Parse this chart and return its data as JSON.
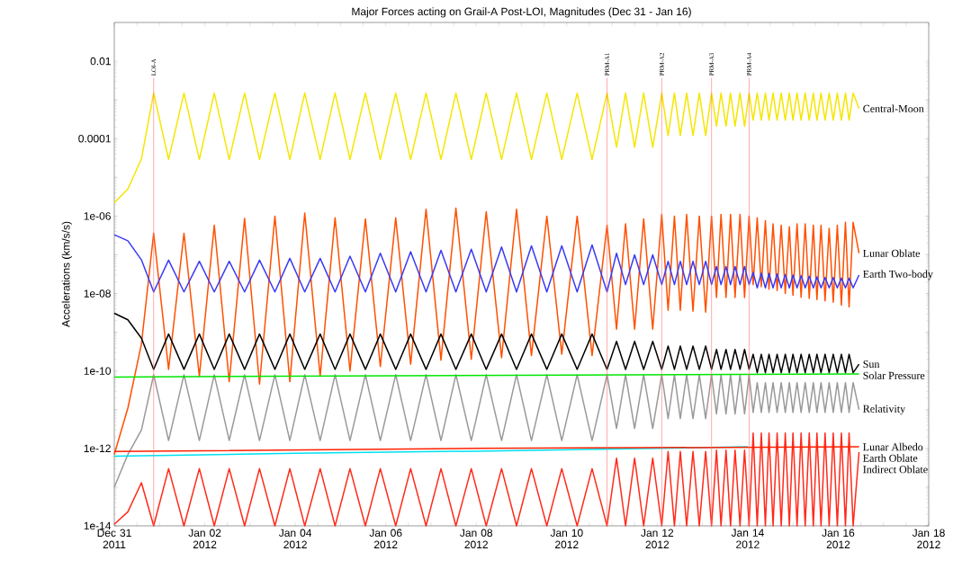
{
  "chart_data": {
    "type": "line",
    "title": "Major Forces acting on Grail-A Post-LOI, Magnitudes (Dec 31 - Jan 16)",
    "ylabel": "Accelerations (km/s/s)",
    "log": "y",
    "xlim": [
      "2011-12-31",
      "2012-01-18"
    ],
    "ylim": [
      1e-14,
      0.1
    ],
    "xticks": [
      {
        "value": "2011-12-31",
        "label": "Dec 31 2011"
      },
      {
        "value": "2011-12-31T12:00",
        "label": null
      },
      {
        "value": "2012-01-01",
        "label": null
      },
      {
        "value": "2012-01-01T12:00",
        "label": null
      },
      {
        "value": "2012-01-02",
        "label": "Jan 02 2012"
      },
      {
        "value": "2012-01-02T12:00",
        "label": null
      },
      {
        "value": "2012-01-03",
        "label": null
      },
      {
        "value": "2012-01-03T12:00",
        "label": null
      },
      {
        "value": "2012-01-04",
        "label": "Jan 04 2012"
      },
      {
        "value": "2012-01-04T12:00",
        "label": null
      },
      {
        "value": "2012-01-05",
        "label": null
      },
      {
        "value": "2012-01-05T12:00",
        "label": null
      },
      {
        "value": "2012-01-06",
        "label": "Jan 06 2012"
      },
      {
        "value": "2012-01-06T12:00",
        "label": null
      },
      {
        "value": "2012-01-07",
        "label": null
      },
      {
        "value": "2012-01-07T12:00",
        "label": null
      },
      {
        "value": "2012-01-08",
        "label": "Jan 08 2012"
      },
      {
        "value": "2012-01-08T12:00",
        "label": null
      },
      {
        "value": "2012-01-09",
        "label": null
      },
      {
        "value": "2012-01-09T12:00",
        "label": null
      },
      {
        "value": "2012-01-10",
        "label": "Jan 10 2012"
      },
      {
        "value": "2012-01-10T12:00",
        "label": null
      },
      {
        "value": "2012-01-11",
        "label": null
      },
      {
        "value": "2012-01-11T12:00",
        "label": null
      },
      {
        "value": "2012-01-12",
        "label": "Jan 12 2012"
      },
      {
        "value": "2012-01-12T12:00",
        "label": null
      },
      {
        "value": "2012-01-13",
        "label": null
      },
      {
        "value": "2012-01-13T12:00",
        "label": null
      },
      {
        "value": "2012-01-14",
        "label": "Jan 14 2012"
      },
      {
        "value": "2012-01-14T12:00",
        "label": null
      },
      {
        "value": "2012-01-15",
        "label": null
      },
      {
        "value": "2012-01-15T12:00",
        "label": null
      },
      {
        "value": "2012-01-16",
        "label": "Jan 16 2012"
      },
      {
        "value": "2012-01-16T12:00",
        "label": null
      },
      {
        "value": "2012-01-17",
        "label": null
      },
      {
        "value": "2012-01-17T12:00",
        "label": null
      },
      {
        "value": "2012-01-18",
        "label": "Jan 18 2012"
      }
    ],
    "yticks": [
      {
        "value": 1e-14,
        "label": "1e-14"
      },
      {
        "value": 1e-13,
        "label": null
      },
      {
        "value": 1e-12,
        "label": "1e-12"
      },
      {
        "value": 1e-11,
        "label": null
      },
      {
        "value": 1e-10,
        "label": "1e-10"
      },
      {
        "value": 1e-09,
        "label": null
      },
      {
        "value": 1e-08,
        "label": "1e-08"
      },
      {
        "value": 1e-07,
        "label": null
      },
      {
        "value": 1e-06,
        "label": "1e-06"
      },
      {
        "value": 1e-05,
        "label": null
      },
      {
        "value": 0.0001,
        "label": "0.0001"
      },
      {
        "value": 0.001,
        "label": null
      },
      {
        "value": 0.01,
        "label": "0.01"
      }
    ],
    "x": [
      "2011-12-31T00:00",
      "2011-12-31T07:12",
      "2011-12-31T14:24",
      "2011-12-31T20:53",
      "2012-01-01T04:48",
      "2012-01-01T12:58",
      "2012-01-01T21:07",
      "2012-01-02T05:02",
      "2012-01-02T12:58",
      "2012-01-02T21:07",
      "2012-01-03T05:02",
      "2012-01-03T13:12",
      "2012-01-03T21:07",
      "2012-01-04T05:02",
      "2012-01-04T13:12",
      "2012-01-04T21:07",
      "2012-01-05T05:02",
      "2012-01-05T13:12",
      "2012-01-05T21:07",
      "2012-01-06T05:17",
      "2012-01-06T13:12",
      "2012-01-06T21:22",
      "2012-01-07T05:17",
      "2012-01-07T13:12",
      "2012-01-07T21:22",
      "2012-01-08T05:17",
      "2012-01-08T13:26",
      "2012-01-08T21:22",
      "2012-01-09T05:17",
      "2012-01-09T13:26",
      "2012-01-09T21:22",
      "2012-01-10T05:31",
      "2012-01-10T13:26",
      "2012-01-10T21:22",
      "2012-01-11T02:24",
      "2012-01-11T07:12",
      "2012-01-11T12:00",
      "2012-01-11T16:48",
      "2012-01-11T21:36",
      "2012-01-12T02:24",
      "2012-01-12T05:46",
      "2012-01-12T09:07",
      "2012-01-12T12:14",
      "2012-01-12T15:36",
      "2012-01-12T18:58",
      "2012-01-12T22:19",
      "2012-01-13T01:41",
      "2012-01-13T04:48",
      "2012-01-13T07:26",
      "2012-01-13T09:50",
      "2012-01-13T12:29",
      "2012-01-13T14:53",
      "2012-01-13T17:17",
      "2012-01-13T19:55",
      "2012-01-13T22:19",
      "2012-01-14T00:43",
      "2012-01-14T02:53",
      "2012-01-14T05:02",
      "2012-01-14T07:12",
      "2012-01-14T09:22",
      "2012-01-14T11:17",
      "2012-01-14T13:26",
      "2012-01-14T15:36",
      "2012-01-14T17:46",
      "2012-01-14T19:55",
      "2012-01-14T22:05",
      "2012-01-15T00:00",
      "2012-01-15T02:10",
      "2012-01-15T04:19",
      "2012-01-15T06:29",
      "2012-01-15T08:38",
      "2012-01-15T10:48",
      "2012-01-15T12:43",
      "2012-01-15T14:53",
      "2012-01-15T17:02",
      "2012-01-15T19:12",
      "2012-01-15T21:22",
      "2012-01-15T23:31",
      "2012-01-16T01:41",
      "2012-01-16T03:50",
      "2012-01-16T05:46",
      "2012-01-16T07:55",
      "2012-01-16T11:02"
    ],
    "series": [
      {
        "name": "Central-Moon",
        "color": "#f5e600",
        "values": [
          2.2e-06,
          5e-06,
          3e-05,
          0.0015,
          2.9e-05,
          0.0015,
          2.9e-05,
          0.0015,
          2.9e-05,
          0.0015,
          2.9e-05,
          0.0015,
          2.9e-05,
          0.0015,
          2.9e-05,
          0.0015,
          2.9e-05,
          0.0015,
          2.9e-05,
          0.0015,
          2.9e-05,
          0.0015,
          2.9e-05,
          0.0015,
          2.9e-05,
          0.0015,
          2.9e-05,
          0.0015,
          2.9e-05,
          0.0015,
          2.9e-05,
          0.0015,
          2.9e-05,
          0.0015,
          6e-05,
          0.0015,
          6e-05,
          0.0015,
          6e-05,
          0.0015,
          0.00012,
          0.0015,
          0.00012,
          0.0015,
          0.00012,
          0.0015,
          0.00012,
          0.0015,
          0.00021,
          0.0015,
          0.00021,
          0.0015,
          0.00021,
          0.0015,
          0.00021,
          0.0015,
          0.0003,
          0.0015,
          0.0003,
          0.0015,
          0.0003,
          0.0015,
          0.0003,
          0.0015,
          0.0003,
          0.0015,
          0.0003,
          0.0015,
          0.0003,
          0.0015,
          0.0003,
          0.0015,
          0.0003,
          0.0015,
          0.0003,
          0.0015,
          0.0003,
          0.0015,
          0.0003,
          0.0015,
          0.0003,
          0.0015,
          0.0006
        ]
      },
      {
        "name": "Lunar Oblate",
        "color": "#ff5000",
        "values": [
          7e-13,
          1.1e-11,
          5e-10,
          3.6e-07,
          1.1e-10,
          3.6e-07,
          7.3e-11,
          5.8e-07,
          5.3e-11,
          8.7e-07,
          4.6e-11,
          1e-06,
          5.3e-11,
          1.2e-06,
          7.3e-11,
          9e-07,
          1e-10,
          8.5e-07,
          1.3e-10,
          9e-07,
          1.5e-10,
          1.5e-06,
          1.9e-10,
          1.6e-06,
          2e-10,
          1.3e-06,
          2.2e-10,
          1.5e-06,
          2.5e-10,
          1e-06,
          2.7e-10,
          1e-06,
          2.5e-10,
          5.8e-07,
          1.2e-09,
          6.3e-07,
          1.2e-09,
          8.5e-07,
          1.2e-09,
          1.1e-06,
          3.7e-09,
          1e-06,
          3.7e-09,
          1.1e-06,
          3.5e-09,
          1e-06,
          3.3e-09,
          1e-06,
          7.9e-09,
          1.1e-06,
          7.9e-09,
          1.1e-06,
          7.9e-09,
          1.1e-06,
          7.9e-09,
          1e-06,
          1.7e-08,
          9e-07,
          1.5e-08,
          7.6e-07,
          1.3e-08,
          6.3e-07,
          1.2e-08,
          5.8e-07,
          1e-08,
          5.3e-07,
          9e-09,
          6.3e-07,
          8e-09,
          6.3e-07,
          7.5e-09,
          5.8e-07,
          7e-09,
          5.8e-07,
          6.5e-09,
          4.8e-07,
          6e-09,
          5.8e-07,
          5e-09,
          6.9e-07,
          4.5e-09,
          6.9e-07,
          1.1e-07
        ]
      },
      {
        "name": "Earth Two-body",
        "color": "#3a3af5",
        "values": [
          3.3e-07,
          2.3e-07,
          7.4e-08,
          1.1e-08,
          7.3e-08,
          1.1e-08,
          6.8e-08,
          1.1e-08,
          6.8e-08,
          1.1e-08,
          7.3e-08,
          1.1e-08,
          8.1e-08,
          1.1e-08,
          8.1e-08,
          1.1e-08,
          9.2e-08,
          1.1e-08,
          1.1e-07,
          1.1e-08,
          1.2e-07,
          1.1e-08,
          1.3e-07,
          1.1e-08,
          1.4e-07,
          1.1e-08,
          1.6e-07,
          1.1e-08,
          1.7e-07,
          1.1e-08,
          1.7e-07,
          1.1e-08,
          1.8e-07,
          1.1e-08,
          1.1e-07,
          1.7e-08,
          1e-07,
          1.7e-08,
          1e-07,
          1.7e-08,
          6.8e-08,
          1.7e-08,
          6.8e-08,
          1.7e-08,
          6.8e-08,
          1.7e-08,
          6.8e-08,
          1.7e-08,
          5e-08,
          1.7e-08,
          5e-08,
          1.7e-08,
          5e-08,
          1.7e-08,
          5e-08,
          1.7e-08,
          3.5e-08,
          1.4e-08,
          3.4e-08,
          1.4e-08,
          3.3e-08,
          1.4e-08,
          3.2e-08,
          1.4e-08,
          3.1e-08,
          1.4e-08,
          3e-08,
          1.4e-08,
          2.9e-08,
          1.4e-08,
          2.8e-08,
          1.4e-08,
          2.7e-08,
          1.4e-08,
          2.6e-08,
          1.4e-08,
          2.6e-08,
          1.4e-08,
          2.5e-08,
          1.4e-08,
          2.5e-08,
          1.4e-08,
          3e-08
        ]
      },
      {
        "name": "Sun",
        "color": "#000000",
        "values": [
          3.1e-09,
          2.1e-09,
          7e-10,
          1.1e-10,
          9e-10,
          1.1e-10,
          9e-10,
          1.1e-10,
          9e-10,
          1.1e-10,
          9e-10,
          1.1e-10,
          9e-10,
          1.1e-10,
          9e-10,
          1.1e-10,
          9e-10,
          1.1e-10,
          9e-10,
          1.1e-10,
          9e-10,
          1.1e-10,
          9e-10,
          1.1e-10,
          9e-10,
          1.1e-10,
          9e-10,
          1.1e-10,
          9e-10,
          1.1e-10,
          9e-10,
          1.1e-10,
          9e-10,
          1.1e-10,
          5.8e-10,
          1.1e-10,
          5.8e-10,
          1.1e-10,
          5.8e-10,
          1.1e-10,
          4.4e-10,
          1.1e-10,
          4.4e-10,
          1.1e-10,
          4.4e-10,
          1.1e-10,
          4.4e-10,
          1.1e-10,
          3.6e-10,
          1.1e-10,
          3.6e-10,
          1.1e-10,
          3.6e-10,
          1.1e-10,
          3.6e-10,
          1.1e-10,
          2.7e-10,
          9e-11,
          2.7e-10,
          9e-11,
          2.7e-10,
          9e-11,
          2.7e-10,
          9e-11,
          2.7e-10,
          9e-11,
          2.7e-10,
          9e-11,
          2.7e-10,
          9e-11,
          2.7e-10,
          9e-11,
          2.7e-10,
          9e-11,
          2.7e-10,
          9e-11,
          2.7e-10,
          9e-11,
          2.7e-10,
          9e-11,
          2.7e-10,
          9e-11,
          1.5e-10
        ]
      },
      {
        "name": "Relativity",
        "color": "#999999",
        "values": [
          1e-13,
          7e-13,
          3e-12,
          8e-11,
          1.6e-12,
          8e-11,
          1.6e-12,
          8e-11,
          1.6e-12,
          8e-11,
          1.6e-12,
          8e-11,
          1.6e-12,
          8e-11,
          1.6e-12,
          8e-11,
          1.6e-12,
          8e-11,
          1.6e-12,
          8e-11,
          1.6e-12,
          8e-11,
          1.6e-12,
          8e-11,
          1.6e-12,
          8e-11,
          1.6e-12,
          8e-11,
          1.6e-12,
          8e-11,
          1.6e-12,
          8e-11,
          1.6e-12,
          8e-11,
          3.3e-12,
          8e-11,
          3.3e-12,
          8e-11,
          3.3e-12,
          8e-11,
          5.9e-12,
          8e-11,
          5.9e-12,
          8e-11,
          5.9e-12,
          8e-11,
          5.9e-12,
          8e-11,
          7.8e-12,
          8e-11,
          7.8e-12,
          8e-11,
          7.8e-12,
          8e-11,
          7.8e-12,
          8e-11,
          8.5e-12,
          5e-11,
          8.5e-12,
          5e-11,
          8.5e-12,
          5e-11,
          8.5e-12,
          5e-11,
          8.5e-12,
          5e-11,
          8.5e-12,
          5e-11,
          8.5e-12,
          5e-11,
          8.5e-12,
          5e-11,
          8.5e-12,
          5e-11,
          8.5e-12,
          5e-11,
          8.5e-12,
          5e-11,
          8.5e-12,
          5e-11,
          8.5e-12,
          5e-11,
          1e-11
        ]
      },
      {
        "name": "Solar Pressure",
        "color": "#00e600",
        "x": [
          "2011-12-31T00:00",
          "2012-01-16T11:02"
        ],
        "values": [
          7e-11,
          8.4e-11
        ]
      },
      {
        "name": "Lunar Albedo",
        "color": "#00e0f0",
        "x": [
          "2011-12-31",
          "2012-01-04",
          "2012-01-08",
          "2012-01-12",
          "2012-01-14"
        ],
        "values": [
          6.3e-13,
          7.5e-13,
          8.5e-13,
          1e-12,
          1.1e-12
        ]
      },
      {
        "name": "Indirect Oblate",
        "color": "#ff2a1a",
        "values": [
          1.1e-14,
          2.3e-14,
          1.3e-13,
          1e-14,
          3e-13,
          1e-14,
          3e-13,
          1e-14,
          3e-13,
          1e-14,
          3e-13,
          1e-14,
          3e-13,
          1e-14,
          3e-13,
          1e-14,
          3e-13,
          1e-14,
          3e-13,
          1e-14,
          3e-13,
          1e-14,
          3e-13,
          1e-14,
          3e-13,
          1e-14,
          3e-13,
          1e-14,
          3e-13,
          1e-14,
          3e-13,
          1e-14,
          3e-13,
          1e-14,
          5.6e-13,
          1e-14,
          5.6e-13,
          1e-14,
          5.6e-13,
          1e-14,
          8.3e-13,
          1e-14,
          8.3e-13,
          1e-14,
          8.3e-13,
          1e-14,
          8.3e-13,
          1e-14,
          9e-13,
          1e-14,
          9e-13,
          1e-14,
          9e-13,
          1e-14,
          9e-13,
          1e-14,
          2.5e-12,
          1e-14,
          2.5e-12,
          1e-14,
          2.5e-12,
          1e-14,
          2.5e-12,
          1e-14,
          2.5e-12,
          1e-14,
          2.5e-12,
          1e-14,
          2.5e-12,
          1e-14,
          2.5e-12,
          1e-14,
          2.5e-12,
          1e-14,
          2.5e-12,
          1e-14,
          2.5e-12,
          1e-14,
          2.5e-12,
          1e-14,
          2.5e-12,
          1e-14,
          8e-13
        ]
      },
      {
        "name": "Earth Oblate",
        "color": "#ff2000",
        "x": [
          "2011-12-31T00:00",
          "2012-01-08",
          "2012-01-16T11:02"
        ],
        "values": [
          8.3e-13,
          1e-12,
          1.1e-12
        ]
      }
    ],
    "ref_lines": [
      {
        "axis": "x",
        "value": "2011-12-31T20:53",
        "label": "LOI-A",
        "color": "#ff7070"
      },
      {
        "axis": "x",
        "value": "2012-01-10T21:22",
        "label": "PRM-A1",
        "color": "#ff7070"
      },
      {
        "axis": "x",
        "value": "2012-01-12T02:24",
        "label": "PRM-A2",
        "color": "#ff7070"
      },
      {
        "axis": "x",
        "value": "2012-01-13T04:48",
        "label": "PRM-A3",
        "color": "#ff7070"
      },
      {
        "axis": "x",
        "value": "2012-01-14T00:43",
        "label": "PRM-A4",
        "color": "#ff7070"
      }
    ]
  }
}
